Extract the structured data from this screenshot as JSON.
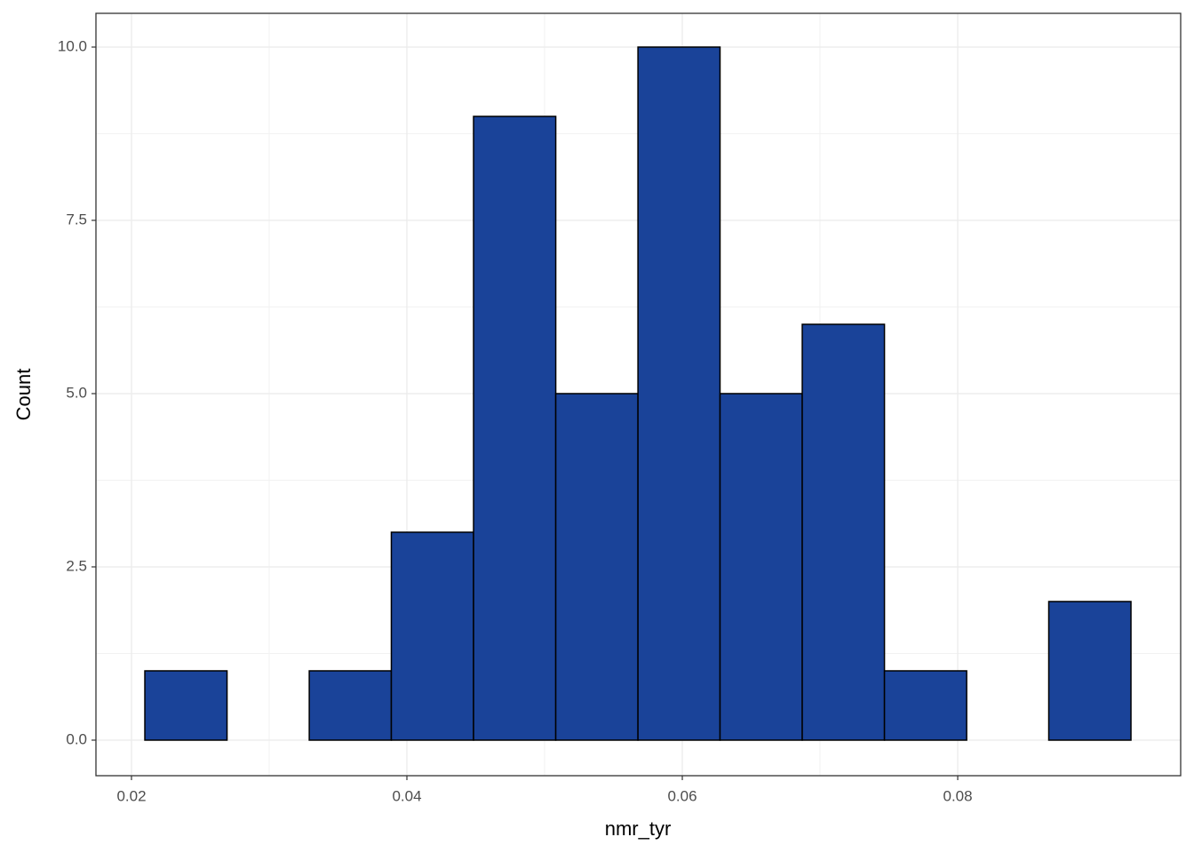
{
  "chart_data": {
    "type": "histogram",
    "x_label": "nmr_tyr",
    "y_label": "Count",
    "bins": [
      0.02097,
      0.02694,
      0.03291,
      0.03887,
      0.04484,
      0.05081,
      0.05678,
      0.06274,
      0.06871,
      0.07468,
      0.08065,
      0.08661,
      0.09258
    ],
    "values": [
      1,
      0,
      1,
      3,
      9,
      5,
      10,
      5,
      6,
      1,
      0,
      2
    ],
    "color": "#1a4399",
    "edge_color": "#000000",
    "xlim": [
      0.01742,
      0.09619
    ],
    "ylim": [
      -0.513,
      10.487
    ],
    "xticks": [
      0.02,
      0.04,
      0.06,
      0.08
    ],
    "yticks": [
      {
        "value": 0,
        "label": "0.0"
      },
      {
        "value": 2.5,
        "label": "2.5"
      },
      {
        "value": 5,
        "label": "5.0"
      },
      {
        "value": 7.5,
        "label": "7.5"
      },
      {
        "value": 10,
        "label": "10.0"
      }
    ],
    "grid": true
  }
}
